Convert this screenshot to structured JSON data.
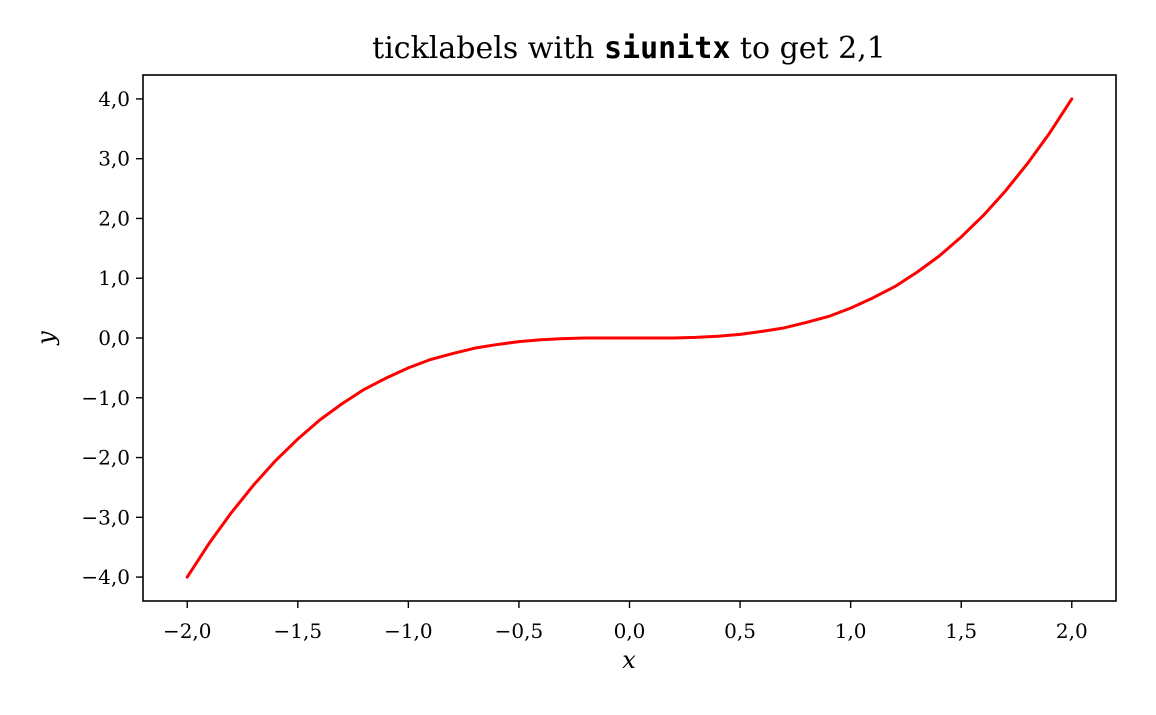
{
  "chart_data": {
    "type": "line",
    "title": {
      "prefix": "ticklabels with ",
      "code": "siunitx",
      "suffix": " to get 2,1"
    },
    "xlabel": "x",
    "ylabel": "y",
    "xlim": [
      -2.2,
      2.2
    ],
    "ylim": [
      -4.4,
      4.4
    ],
    "grid": false,
    "xticks": [
      -2.0,
      -1.5,
      -1.0,
      -0.5,
      0.0,
      0.5,
      1.0,
      1.5,
      2.0
    ],
    "xtick_labels": [
      "−2,0",
      "−1,5",
      "−1,0",
      "−0,5",
      "0,0",
      "0,5",
      "1,0",
      "1,5",
      "2,0"
    ],
    "yticks": [
      4.0,
      3.0,
      2.0,
      1.0,
      0.0,
      -1.0,
      -2.0,
      -3.0,
      -4.0
    ],
    "ytick_labels": [
      "4,0",
      "3,0",
      "2,0",
      "1,0",
      "0,0",
      "−1,0",
      "−2,0",
      "−3,0",
      "−4,0"
    ],
    "series": [
      {
        "color": "#ff0000",
        "x": [
          -2.0,
          -1.9,
          -1.8,
          -1.7,
          -1.6,
          -1.5,
          -1.4,
          -1.3,
          -1.2,
          -1.1,
          -1.0,
          -0.9,
          -0.8,
          -0.7,
          -0.6,
          -0.5,
          -0.4,
          -0.3,
          -0.2,
          -0.1,
          0.0,
          0.1,
          0.2,
          0.3,
          0.4,
          0.5,
          0.6,
          0.7,
          0.8,
          0.9,
          1.0,
          1.1,
          1.2,
          1.3,
          1.4,
          1.5,
          1.6,
          1.7,
          1.8,
          1.9,
          2.0
        ],
        "y": [
          -4.0,
          -3.43,
          -2.92,
          -2.46,
          -2.05,
          -1.69,
          -1.37,
          -1.1,
          -0.86,
          -0.67,
          -0.5,
          -0.36,
          -0.26,
          -0.17,
          -0.11,
          -0.06,
          -0.03,
          -0.01,
          0.0,
          0.0,
          0.0,
          0.0,
          0.0,
          0.01,
          0.03,
          0.06,
          0.11,
          0.17,
          0.26,
          0.36,
          0.5,
          0.67,
          0.86,
          1.1,
          1.37,
          1.69,
          2.05,
          2.46,
          2.92,
          3.43,
          4.0
        ]
      }
    ]
  }
}
